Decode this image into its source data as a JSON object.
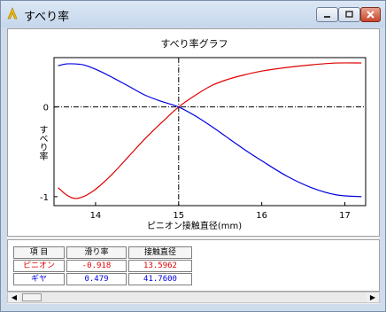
{
  "window": {
    "title": "すべり率"
  },
  "chart_data": {
    "type": "line",
    "title": "すべり率グラフ",
    "xlabel": "ピニオン接触直径(mm)",
    "ylabel": "すべり率",
    "xlim": [
      13.5,
      17.25
    ],
    "ylim": [
      -1.1,
      0.55
    ],
    "x_ticks": [
      14,
      15,
      16,
      17
    ],
    "x_tick_labels": [
      "14",
      "15",
      "16",
      "17"
    ],
    "y_ticks": [
      0,
      -1
    ],
    "y_tick_labels": [
      "0",
      "-1"
    ],
    "crosshair": {
      "x": 15,
      "y": 0
    },
    "grid": false,
    "series": [
      {
        "color": "#e00000",
        "x": [
          13.55,
          13.65,
          13.75,
          13.85,
          13.95,
          14.05,
          14.2,
          14.4,
          14.6,
          14.8,
          15.0,
          15.2,
          15.4,
          15.6,
          15.8,
          16.0,
          16.3,
          16.6,
          16.9,
          17.2
        ],
        "y": [
          -0.9,
          -0.98,
          -1.02,
          -1.0,
          -0.95,
          -0.88,
          -0.75,
          -0.55,
          -0.35,
          -0.17,
          0.0,
          0.13,
          0.24,
          0.31,
          0.36,
          0.4,
          0.44,
          0.47,
          0.49,
          0.49
        ]
      },
      {
        "color": "#0000e0",
        "x": [
          13.55,
          13.65,
          13.75,
          13.85,
          13.95,
          14.05,
          14.2,
          14.4,
          14.6,
          14.8,
          15.0,
          15.2,
          15.4,
          15.6,
          15.8,
          16.0,
          16.3,
          16.6,
          16.9,
          17.2
        ],
        "y": [
          0.46,
          0.48,
          0.48,
          0.47,
          0.44,
          0.4,
          0.33,
          0.23,
          0.13,
          0.06,
          0.0,
          -0.1,
          -0.22,
          -0.35,
          -0.48,
          -0.6,
          -0.77,
          -0.9,
          -0.98,
          -1.0
        ]
      }
    ]
  },
  "table": {
    "headers": [
      "項 目",
      "滑り率",
      "接触直径"
    ],
    "rows": [
      {
        "label": "ピニオン",
        "slip": "-0.918",
        "diameter": "13.5962",
        "color": "#e00000"
      },
      {
        "label": "ギヤ",
        "slip": "0.479",
        "diameter": "41.7600",
        "color": "#0000e0"
      }
    ]
  },
  "scrollbar": {
    "left_arrow": "◀",
    "right_arrow": "▶"
  }
}
